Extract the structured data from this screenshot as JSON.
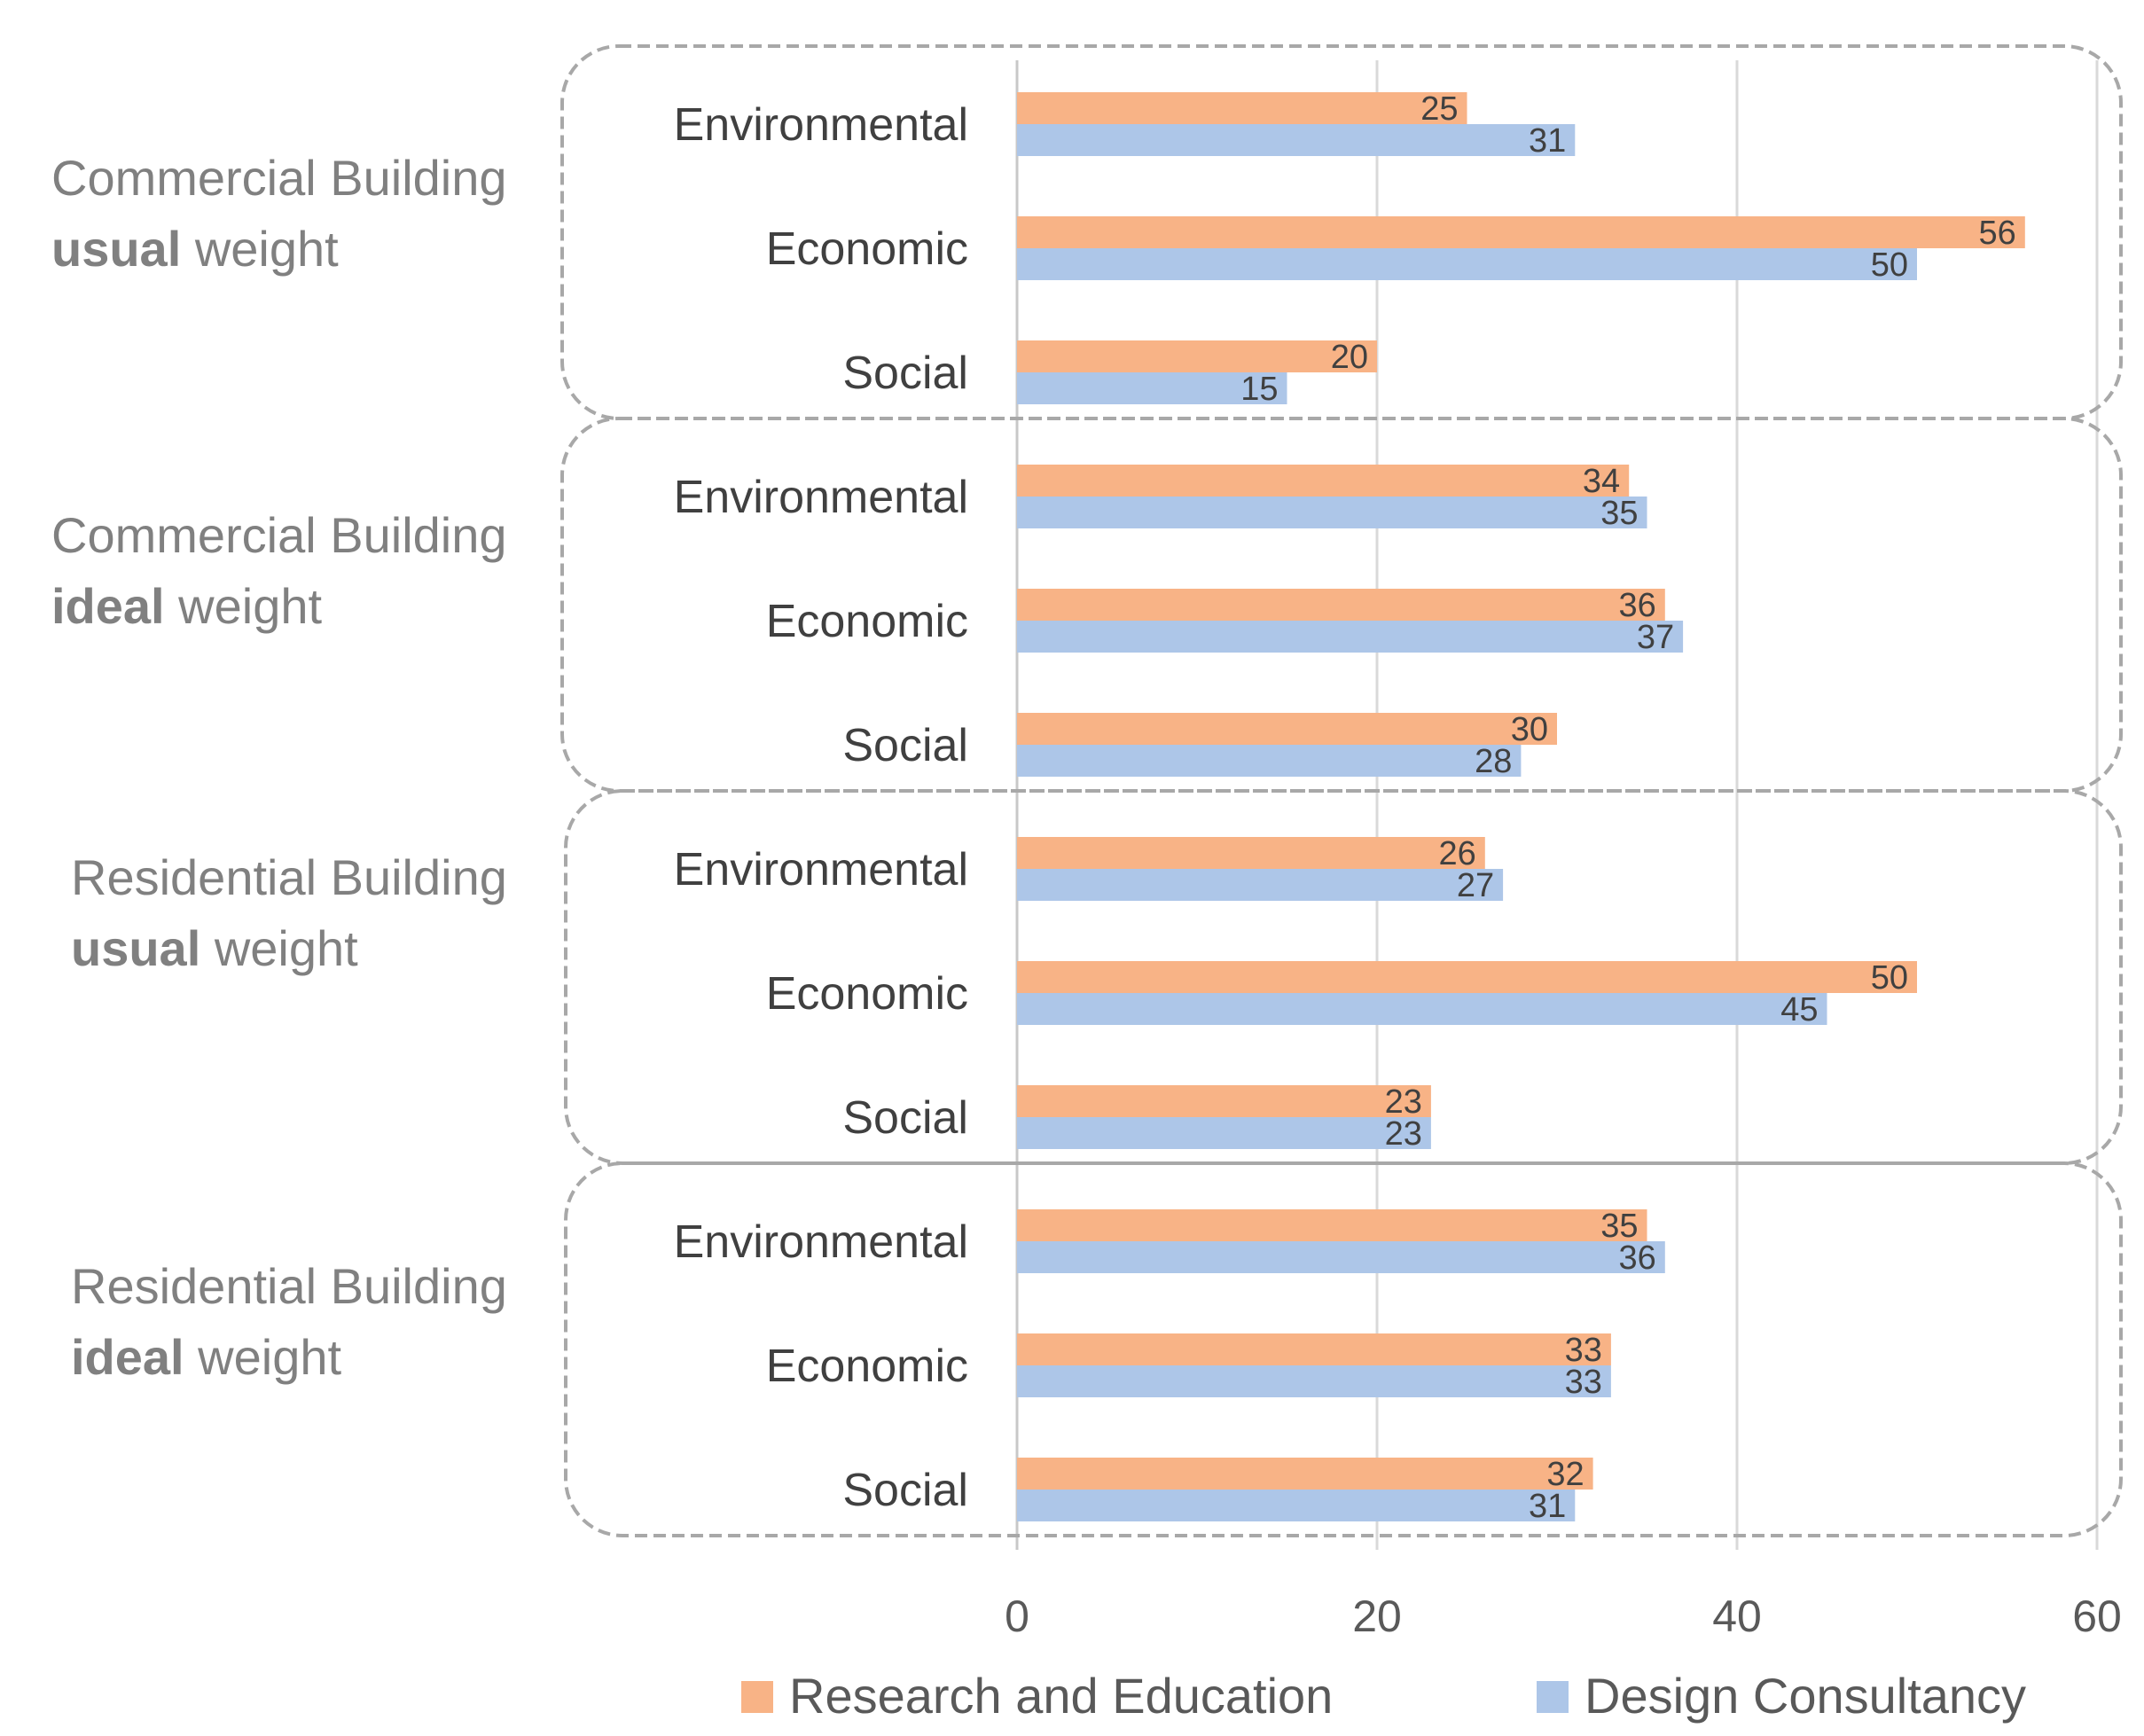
{
  "chart_data": {
    "type": "bar",
    "orientation": "horizontal",
    "title": "",
    "xlabel": "",
    "ylabel": "",
    "xlim": [
      0,
      60
    ],
    "x_ticks": [
      0,
      20,
      40,
      60
    ],
    "grid": true,
    "legend_position": "bottom",
    "colors": {
      "Research and Education": "#f8b386",
      "Design Consultancy": "#adc6e8"
    },
    "series_names": [
      "Research and Education",
      "Design Consultancy"
    ],
    "groups": [
      {
        "label_line1": "Commercial Building",
        "label_bold": "usual",
        "label_rest": " weight",
        "categories": [
          {
            "name": "Environmental",
            "values": [
              25,
              31
            ]
          },
          {
            "name": "Economic",
            "values": [
              56,
              50
            ]
          },
          {
            "name": "Social",
            "values": [
              20,
              15
            ]
          }
        ]
      },
      {
        "label_line1": "Commercial Building",
        "label_bold": "ideal",
        "label_rest": " weight",
        "categories": [
          {
            "name": "Environmental",
            "values": [
              34,
              35
            ]
          },
          {
            "name": "Economic",
            "values": [
              36,
              37
            ]
          },
          {
            "name": "Social",
            "values": [
              30,
              28
            ]
          }
        ]
      },
      {
        "label_line1": "Residential Building",
        "label_bold": "usual",
        "label_rest": " weight",
        "categories": [
          {
            "name": "Environmental",
            "values": [
              26,
              27
            ]
          },
          {
            "name": "Economic",
            "values": [
              50,
              45
            ]
          },
          {
            "name": "Social",
            "values": [
              23,
              23
            ]
          }
        ]
      },
      {
        "label_line1": "Residential Building",
        "label_bold": "ideal",
        "label_rest": " weight",
        "categories": [
          {
            "name": "Environmental",
            "values": [
              35,
              36
            ]
          },
          {
            "name": "Economic",
            "values": [
              33,
              33
            ]
          },
          {
            "name": "Social",
            "values": [
              32,
              31
            ]
          }
        ]
      }
    ]
  }
}
